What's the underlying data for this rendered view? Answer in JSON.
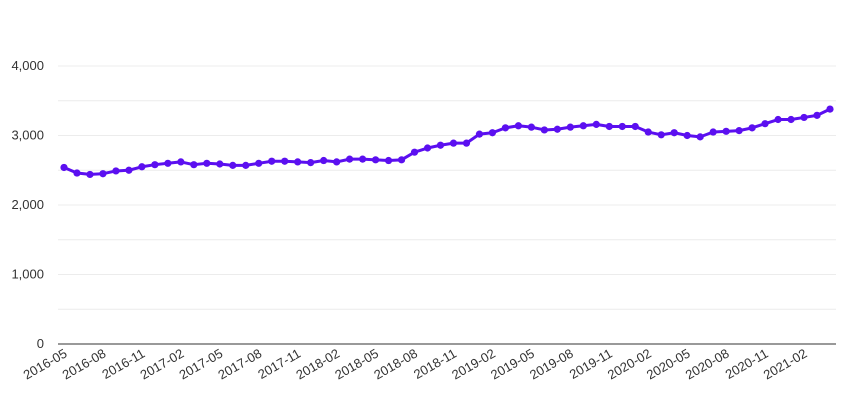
{
  "chart_data": {
    "type": "line",
    "title": "",
    "xlabel": "",
    "ylabel": "",
    "ylim": [
      0,
      4000
    ],
    "yticks": [
      0,
      1000,
      2000,
      3000,
      4000
    ],
    "ytick_labels": [
      "0",
      "1,000",
      "2,000",
      "3,000",
      "4,000"
    ],
    "grid": true,
    "legend": "none",
    "x": [
      "2016-05",
      "2016-06",
      "2016-07",
      "2016-08",
      "2016-09",
      "2016-10",
      "2016-11",
      "2016-12",
      "2017-01",
      "2017-02",
      "2017-03",
      "2017-04",
      "2017-05",
      "2017-06",
      "2017-07",
      "2017-08",
      "2017-09",
      "2017-10",
      "2017-11",
      "2017-12",
      "2018-01",
      "2018-02",
      "2018-03",
      "2018-04",
      "2018-05",
      "2018-06",
      "2018-07",
      "2018-08",
      "2018-09",
      "2018-10",
      "2018-11",
      "2018-12",
      "2019-01",
      "2019-02",
      "2019-03",
      "2019-04",
      "2019-05",
      "2019-06",
      "2019-07",
      "2019-08",
      "2019-09",
      "2019-10",
      "2019-11",
      "2019-12",
      "2020-01",
      "2020-02",
      "2020-03",
      "2020-04",
      "2020-05",
      "2020-06",
      "2020-07",
      "2020-08",
      "2020-09",
      "2020-10",
      "2020-11",
      "2020-12",
      "2021-01",
      "2021-02",
      "2021-03",
      "2021-04"
    ],
    "xtick_labels": [
      "2016-05",
      "2016-08",
      "2016-11",
      "2017-02",
      "2017-05",
      "2017-08",
      "2017-11",
      "2018-02",
      "2018-05",
      "2018-08",
      "2018-11",
      "2019-02",
      "2019-05",
      "2019-08",
      "2019-11",
      "2020-02",
      "2020-05",
      "2020-08",
      "2020-11",
      "2021-02"
    ],
    "series": [
      {
        "color": "#5b0ff0",
        "values": [
          2540,
          2460,
          2440,
          2450,
          2490,
          2500,
          2550,
          2580,
          2600,
          2620,
          2580,
          2600,
          2590,
          2570,
          2570,
          2600,
          2630,
          2630,
          2620,
          2610,
          2640,
          2620,
          2660,
          2660,
          2650,
          2640,
          2650,
          2760,
          2820,
          2860,
          2890,
          2890,
          3020,
          3040,
          3110,
          3140,
          3120,
          3080,
          3090,
          3120,
          3140,
          3160,
          3130,
          3130,
          3130,
          3050,
          3010,
          3040,
          3000,
          2980,
          3050,
          3060,
          3070,
          3110,
          3170,
          3230,
          3230,
          3260,
          3290,
          3380
        ]
      }
    ]
  }
}
